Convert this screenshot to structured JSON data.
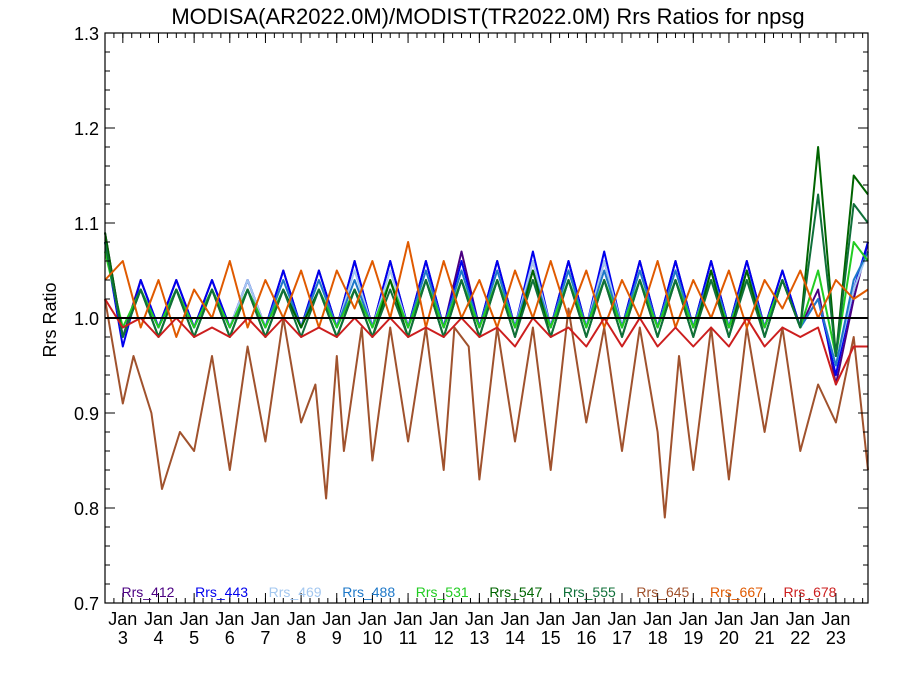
{
  "chart_data": {
    "type": "line",
    "title": "MODISA(AR2022.0M)/MODIST(TR2022.0M)  Rrs Ratios for npsg",
    "xlabel": "",
    "ylabel": "Rrs Ratio",
    "ylim": [
      0.7,
      1.3
    ],
    "yticks": [
      "0.7",
      "0.8",
      "0.9",
      "1.0",
      "1.1",
      "1.2",
      "1.3"
    ],
    "xlim": [
      2002.5,
      2023.9
    ],
    "xticks": [
      {
        "month": "Jan",
        "year": "3",
        "x": 2003
      },
      {
        "month": "Jan",
        "year": "4",
        "x": 2004
      },
      {
        "month": "Jan",
        "year": "5",
        "x": 2005
      },
      {
        "month": "Jan",
        "year": "6",
        "x": 2006
      },
      {
        "month": "Jan",
        "year": "7",
        "x": 2007
      },
      {
        "month": "Jan",
        "year": "8",
        "x": 2008
      },
      {
        "month": "Jan",
        "year": "9",
        "x": 2009
      },
      {
        "month": "Jan",
        "year": "10",
        "x": 2010
      },
      {
        "month": "Jan",
        "year": "11",
        "x": 2011
      },
      {
        "month": "Jan",
        "year": "12",
        "x": 2012
      },
      {
        "month": "Jan",
        "year": "13",
        "x": 2013
      },
      {
        "month": "Jan",
        "year": "14",
        "x": 2014
      },
      {
        "month": "Jan",
        "year": "15",
        "x": 2015
      },
      {
        "month": "Jan",
        "year": "16",
        "x": 2016
      },
      {
        "month": "Jan",
        "year": "17",
        "x": 2017
      },
      {
        "month": "Jan",
        "year": "18",
        "x": 2018
      },
      {
        "month": "Jan",
        "year": "19",
        "x": 2019
      },
      {
        "month": "Jan",
        "year": "20",
        "x": 2020
      },
      {
        "month": "Jan",
        "year": "21",
        "x": 2021
      },
      {
        "month": "Jan",
        "year": "22",
        "x": 2022
      },
      {
        "month": "Jan",
        "year": "23",
        "x": 2023
      }
    ],
    "reference_line": {
      "y": 1.0,
      "color": "#000000"
    },
    "grid": false,
    "legend_position": "bottom",
    "series": [
      {
        "name": "Rrs_412",
        "color": "#4b0082",
        "x": [
          2002.5,
          2003.0,
          2003.5,
          2004.0,
          2004.5,
          2005.0,
          2005.5,
          2006.0,
          2006.5,
          2007.0,
          2007.5,
          2008.0,
          2008.5,
          2009.0,
          2009.5,
          2010.0,
          2010.5,
          2011.0,
          2011.5,
          2012.0,
          2012.5,
          2013.0,
          2013.5,
          2014.0,
          2014.5,
          2015.0,
          2015.5,
          2016.0,
          2016.5,
          2017.0,
          2017.5,
          2018.0,
          2018.5,
          2019.0,
          2019.5,
          2020.0,
          2020.5,
          2021.0,
          2021.5,
          2022.0,
          2022.5,
          2023.0,
          2023.5,
          2023.9
        ],
        "values": [
          1.09,
          0.98,
          1.04,
          0.99,
          1.04,
          0.99,
          1.04,
          0.99,
          1.04,
          0.99,
          1.05,
          0.99,
          1.05,
          0.99,
          1.06,
          0.99,
          1.06,
          0.99,
          1.06,
          0.99,
          1.07,
          0.99,
          1.06,
          0.99,
          1.06,
          0.99,
          1.06,
          0.99,
          1.06,
          0.99,
          1.06,
          0.99,
          1.06,
          0.99,
          1.06,
          0.99,
          1.06,
          0.99,
          1.05,
          0.99,
          1.03,
          0.93,
          1.02,
          1.08
        ]
      },
      {
        "name": "Rrs_443",
        "color": "#0000ee",
        "x": [
          2002.5,
          2003.0,
          2003.5,
          2004.0,
          2004.5,
          2005.0,
          2005.5,
          2006.0,
          2006.5,
          2007.0,
          2007.5,
          2008.0,
          2008.5,
          2009.0,
          2009.5,
          2010.0,
          2010.5,
          2011.0,
          2011.5,
          2012.0,
          2012.5,
          2013.0,
          2013.5,
          2014.0,
          2014.5,
          2015.0,
          2015.5,
          2016.0,
          2016.5,
          2017.0,
          2017.5,
          2018.0,
          2018.5,
          2019.0,
          2019.5,
          2020.0,
          2020.5,
          2021.0,
          2021.5,
          2022.0,
          2022.5,
          2023.0,
          2023.5,
          2023.9
        ],
        "values": [
          1.08,
          0.97,
          1.04,
          0.99,
          1.04,
          0.99,
          1.04,
          0.99,
          1.04,
          0.99,
          1.05,
          0.99,
          1.05,
          0.99,
          1.06,
          0.99,
          1.06,
          0.99,
          1.06,
          0.99,
          1.06,
          0.99,
          1.06,
          0.99,
          1.07,
          0.99,
          1.06,
          0.99,
          1.07,
          0.99,
          1.06,
          0.99,
          1.06,
          0.99,
          1.06,
          0.99,
          1.06,
          0.99,
          1.05,
          0.99,
          1.02,
          0.94,
          1.03,
          1.08
        ]
      },
      {
        "name": "Rrs_469",
        "color": "#a4c8f0",
        "x": [
          2002.5,
          2003.0,
          2003.5,
          2004.0,
          2004.5,
          2005.0,
          2005.5,
          2006.0,
          2006.5,
          2007.0,
          2007.5,
          2008.0,
          2008.5,
          2009.0,
          2009.5,
          2010.0,
          2010.5,
          2011.0,
          2011.5,
          2012.0,
          2012.5,
          2013.0,
          2013.5,
          2014.0,
          2014.5,
          2015.0,
          2015.5,
          2016.0,
          2016.5,
          2017.0,
          2017.5,
          2018.0,
          2018.5,
          2019.0,
          2019.5,
          2020.0,
          2020.5,
          2021.0,
          2021.5,
          2022.0,
          2022.5,
          2023.0,
          2023.5,
          2023.9
        ],
        "values": [
          1.08,
          0.98,
          1.03,
          0.99,
          1.03,
          0.99,
          1.03,
          0.99,
          1.04,
          0.99,
          1.04,
          0.99,
          1.04,
          0.99,
          1.05,
          0.99,
          1.05,
          0.99,
          1.05,
          0.99,
          1.05,
          0.99,
          1.05,
          0.99,
          1.06,
          0.99,
          1.05,
          0.99,
          1.06,
          0.99,
          1.05,
          0.99,
          1.05,
          0.99,
          1.05,
          0.99,
          1.05,
          0.99,
          1.04,
          0.99,
          1.02,
          0.95,
          1.03,
          1.07
        ]
      },
      {
        "name": "Rrs_488",
        "color": "#1e78c8",
        "x": [
          2002.5,
          2003.0,
          2003.5,
          2004.0,
          2004.5,
          2005.0,
          2005.5,
          2006.0,
          2006.5,
          2007.0,
          2007.5,
          2008.0,
          2008.5,
          2009.0,
          2009.5,
          2010.0,
          2010.5,
          2011.0,
          2011.5,
          2012.0,
          2012.5,
          2013.0,
          2013.5,
          2014.0,
          2014.5,
          2015.0,
          2015.5,
          2016.0,
          2016.5,
          2017.0,
          2017.5,
          2018.0,
          2018.5,
          2019.0,
          2019.5,
          2020.0,
          2020.5,
          2021.0,
          2021.5,
          2022.0,
          2022.5,
          2023.0,
          2023.5,
          2023.9
        ],
        "values": [
          1.08,
          0.98,
          1.03,
          0.99,
          1.03,
          0.99,
          1.03,
          0.99,
          1.03,
          0.99,
          1.04,
          0.99,
          1.04,
          0.99,
          1.04,
          0.99,
          1.04,
          0.99,
          1.05,
          0.99,
          1.05,
          0.99,
          1.05,
          0.99,
          1.05,
          0.99,
          1.05,
          0.99,
          1.05,
          0.99,
          1.05,
          0.99,
          1.05,
          0.99,
          1.05,
          0.99,
          1.05,
          0.99,
          1.04,
          0.99,
          1.02,
          0.95,
          1.04,
          1.07
        ]
      },
      {
        "name": "Rrs_531",
        "color": "#22cc22",
        "x": [
          2002.5,
          2003.0,
          2003.5,
          2004.0,
          2004.5,
          2005.0,
          2005.5,
          2006.0,
          2006.5,
          2007.0,
          2007.5,
          2008.0,
          2008.5,
          2009.0,
          2009.5,
          2010.0,
          2010.5,
          2011.0,
          2011.5,
          2012.0,
          2012.5,
          2013.0,
          2013.5,
          2014.0,
          2014.5,
          2015.0,
          2015.5,
          2016.0,
          2016.5,
          2017.0,
          2017.5,
          2018.0,
          2018.5,
          2019.0,
          2019.5,
          2020.0,
          2020.5,
          2021.0,
          2021.5,
          2022.0,
          2022.5,
          2023.0,
          2023.5,
          2023.9
        ],
        "values": [
          1.07,
          0.99,
          1.03,
          0.99,
          1.03,
          0.99,
          1.03,
          0.99,
          1.03,
          0.99,
          1.03,
          0.99,
          1.03,
          0.99,
          1.03,
          0.99,
          1.04,
          0.99,
          1.04,
          0.99,
          1.04,
          0.99,
          1.04,
          0.99,
          1.04,
          0.99,
          1.04,
          0.99,
          1.04,
          0.99,
          1.04,
          0.99,
          1.04,
          0.99,
          1.04,
          0.99,
          1.04,
          0.99,
          1.04,
          0.99,
          1.05,
          0.96,
          1.08,
          1.06
        ]
      },
      {
        "name": "Rrs_547",
        "color": "#006400",
        "x": [
          2002.5,
          2003.0,
          2003.5,
          2004.0,
          2004.5,
          2005.0,
          2005.5,
          2006.0,
          2006.5,
          2007.0,
          2007.5,
          2008.0,
          2008.5,
          2009.0,
          2009.5,
          2010.0,
          2010.5,
          2011.0,
          2011.5,
          2012.0,
          2012.5,
          2013.0,
          2013.5,
          2014.0,
          2014.5,
          2015.0,
          2015.5,
          2016.0,
          2016.5,
          2017.0,
          2017.5,
          2018.0,
          2018.5,
          2019.0,
          2019.5,
          2020.0,
          2020.5,
          2021.0,
          2021.5,
          2022.0,
          2022.5,
          2023.0,
          2023.5,
          2023.9
        ],
        "values": [
          1.09,
          0.98,
          1.03,
          0.98,
          1.03,
          0.98,
          1.03,
          0.98,
          1.03,
          0.98,
          1.03,
          0.99,
          1.03,
          0.98,
          1.03,
          0.98,
          1.04,
          0.98,
          1.04,
          0.98,
          1.04,
          0.98,
          1.04,
          0.98,
          1.05,
          0.98,
          1.04,
          0.98,
          1.04,
          0.98,
          1.04,
          0.98,
          1.04,
          0.98,
          1.05,
          0.98,
          1.05,
          0.98,
          1.04,
          0.99,
          1.18,
          0.96,
          1.15,
          1.13
        ]
      },
      {
        "name": "Rrs_555",
        "color": "#10703a",
        "x": [
          2002.5,
          2003.0,
          2003.5,
          2004.0,
          2004.5,
          2005.0,
          2005.5,
          2006.0,
          2006.5,
          2007.0,
          2007.5,
          2008.0,
          2008.5,
          2009.0,
          2009.5,
          2010.0,
          2010.5,
          2011.0,
          2011.5,
          2012.0,
          2012.5,
          2013.0,
          2013.5,
          2014.0,
          2014.5,
          2015.0,
          2015.5,
          2016.0,
          2016.5,
          2017.0,
          2017.5,
          2018.0,
          2018.5,
          2019.0,
          2019.5,
          2020.0,
          2020.5,
          2021.0,
          2021.5,
          2022.0,
          2022.5,
          2023.0,
          2023.5,
          2023.9
        ],
        "values": [
          1.08,
          0.98,
          1.03,
          0.98,
          1.03,
          0.98,
          1.03,
          0.98,
          1.03,
          0.98,
          1.03,
          0.98,
          1.03,
          0.98,
          1.03,
          0.98,
          1.03,
          0.98,
          1.04,
          0.98,
          1.04,
          0.98,
          1.04,
          0.98,
          1.04,
          0.98,
          1.04,
          0.98,
          1.04,
          0.98,
          1.04,
          0.98,
          1.04,
          0.98,
          1.04,
          0.98,
          1.04,
          0.98,
          1.04,
          0.99,
          1.13,
          0.96,
          1.12,
          1.1
        ]
      },
      {
        "name": "Rrs_645",
        "color": "#a0522d",
        "x": [
          2002.5,
          2003.0,
          2003.3,
          2003.8,
          2004.1,
          2004.6,
          2005.0,
          2005.5,
          2006.0,
          2006.5,
          2007.0,
          2007.5,
          2008.0,
          2008.4,
          2008.7,
          2009.0,
          2009.2,
          2009.7,
          2010.0,
          2010.5,
          2011.0,
          2011.5,
          2012.0,
          2012.3,
          2012.7,
          2013.0,
          2013.5,
          2014.0,
          2014.5,
          2015.0,
          2015.5,
          2016.0,
          2016.5,
          2017.0,
          2017.5,
          2018.0,
          2018.2,
          2018.6,
          2019.0,
          2019.5,
          2020.0,
          2020.5,
          2021.0,
          2021.5,
          2022.0,
          2022.5,
          2023.0,
          2023.5,
          2023.9
        ],
        "values": [
          1.02,
          0.91,
          0.96,
          0.9,
          0.82,
          0.88,
          0.86,
          0.96,
          0.84,
          0.97,
          0.87,
          1.0,
          0.89,
          0.93,
          0.81,
          0.96,
          0.86,
          0.99,
          0.85,
          0.99,
          0.87,
          0.99,
          0.84,
          0.99,
          0.97,
          0.83,
          0.99,
          0.87,
          0.99,
          0.84,
          1.01,
          0.89,
          0.99,
          0.86,
          0.99,
          0.88,
          0.79,
          0.96,
          0.84,
          0.99,
          0.83,
          0.99,
          0.88,
          0.99,
          0.86,
          0.93,
          0.89,
          0.98,
          0.84
        ]
      },
      {
        "name": "Rrs_667",
        "color": "#e05a00",
        "x": [
          2002.5,
          2003.0,
          2003.5,
          2004.0,
          2004.5,
          2005.0,
          2005.5,
          2006.0,
          2006.5,
          2007.0,
          2007.5,
          2008.0,
          2008.5,
          2009.0,
          2009.5,
          2010.0,
          2010.5,
          2011.0,
          2011.5,
          2012.0,
          2012.5,
          2013.0,
          2013.5,
          2014.0,
          2014.5,
          2015.0,
          2015.5,
          2016.0,
          2016.5,
          2017.0,
          2017.5,
          2018.0,
          2018.5,
          2019.0,
          2019.5,
          2020.0,
          2020.5,
          2021.0,
          2021.5,
          2022.0,
          2022.5,
          2023.0,
          2023.5,
          2023.9
        ],
        "values": [
          1.04,
          1.06,
          0.99,
          1.04,
          0.98,
          1.03,
          1.0,
          1.06,
          0.99,
          1.04,
          1.0,
          1.05,
          0.99,
          1.05,
          1.01,
          1.06,
          1.0,
          1.08,
          0.99,
          1.06,
          1.0,
          1.04,
          0.99,
          1.05,
          1.0,
          1.06,
          1.0,
          1.05,
          0.99,
          1.04,
          1.0,
          1.06,
          0.99,
          1.04,
          1.0,
          1.05,
          0.99,
          1.04,
          1.01,
          1.05,
          1.0,
          1.04,
          1.02,
          1.03
        ]
      },
      {
        "name": "Rrs_678",
        "color": "#cc1e1e",
        "x": [
          2002.5,
          2003.0,
          2003.5,
          2004.0,
          2004.5,
          2005.0,
          2005.5,
          2006.0,
          2006.5,
          2007.0,
          2007.5,
          2008.0,
          2008.5,
          2009.0,
          2009.5,
          2010.0,
          2010.5,
          2011.0,
          2011.5,
          2012.0,
          2012.5,
          2013.0,
          2013.5,
          2014.0,
          2014.5,
          2015.0,
          2015.5,
          2016.0,
          2016.5,
          2017.0,
          2017.5,
          2018.0,
          2018.5,
          2019.0,
          2019.5,
          2020.0,
          2020.5,
          2021.0,
          2021.5,
          2022.0,
          2022.5,
          2023.0,
          2023.5,
          2023.9
        ],
        "values": [
          1.02,
          0.99,
          1.0,
          0.98,
          1.0,
          0.98,
          0.99,
          0.98,
          1.0,
          0.98,
          1.0,
          0.98,
          0.99,
          0.98,
          1.0,
          0.98,
          1.0,
          0.98,
          0.99,
          0.98,
          1.0,
          0.98,
          0.99,
          0.97,
          1.0,
          0.98,
          0.99,
          0.97,
          1.0,
          0.97,
          1.0,
          0.97,
          0.99,
          0.97,
          0.99,
          0.97,
          1.0,
          0.97,
          0.99,
          0.98,
          0.99,
          0.93,
          0.97,
          0.97
        ]
      }
    ]
  }
}
